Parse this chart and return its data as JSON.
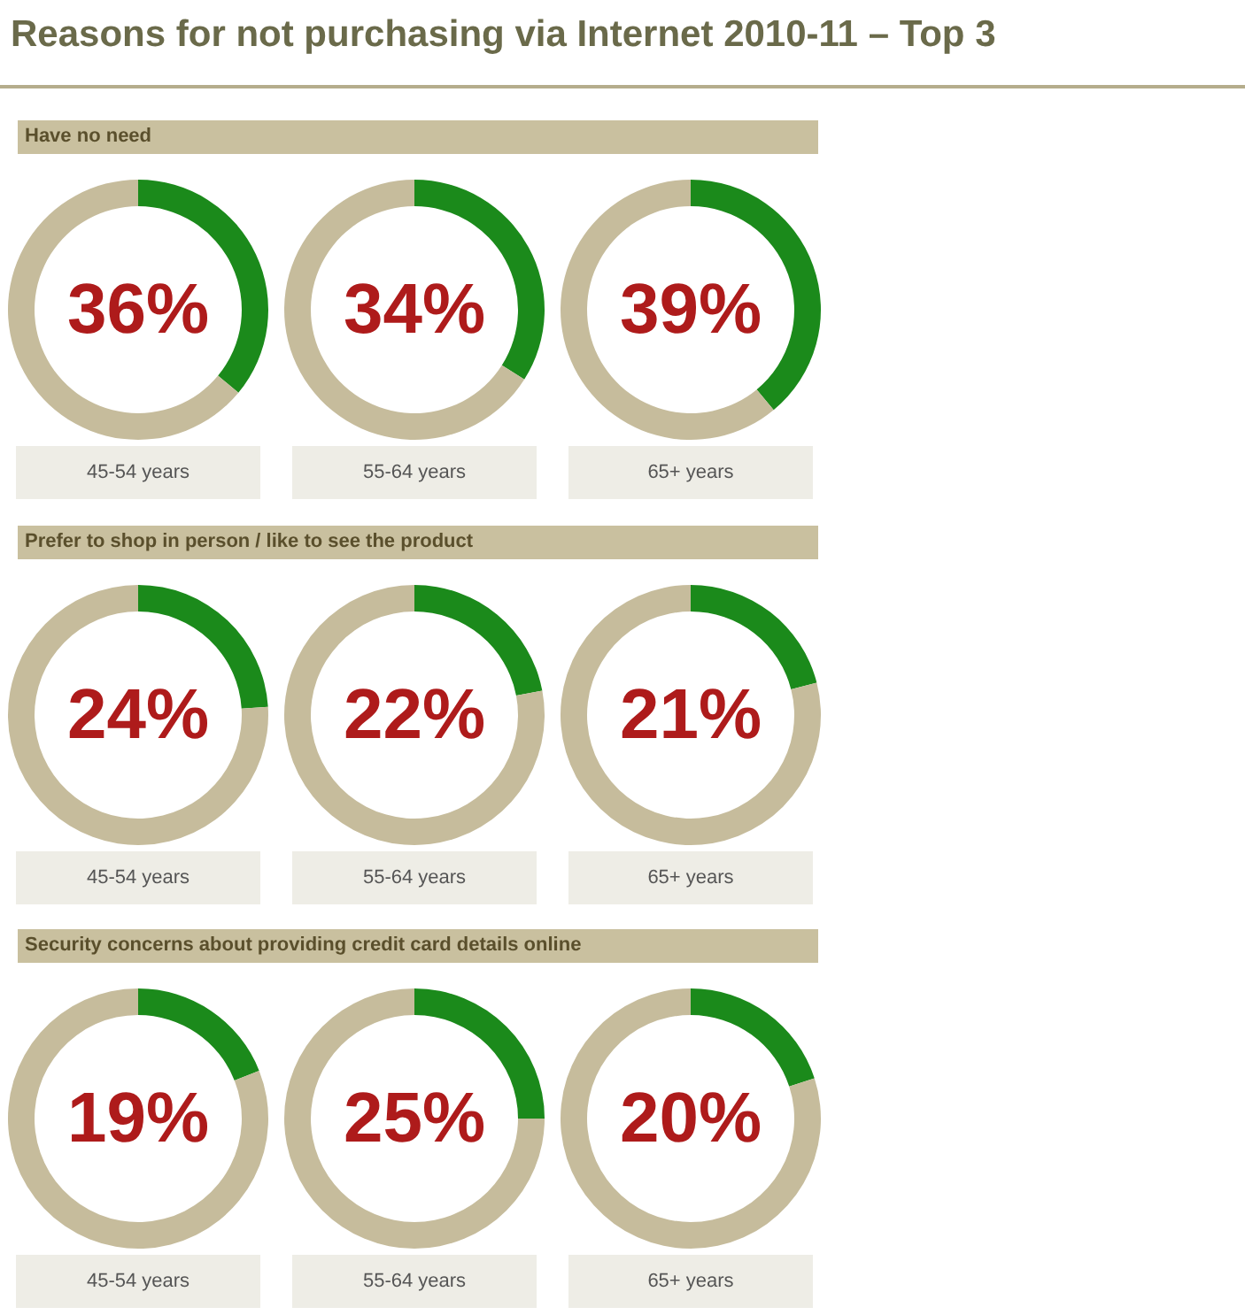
{
  "chart_data": [
    {
      "type": "donut",
      "title": "Reasons for not purchasing via Internet 2010-11 – Top 3",
      "subtitle": "Have no need",
      "categories": [
        null,
        null
      ],
      "values": [
        36,
        64
      ],
      "colors": [
        "#1b8a1b",
        "#c6bc9c"
      ],
      "annotations": [
        "36%",
        "45-54 years"
      ]
    },
    {
      "type": "donut",
      "categories": [
        null,
        null
      ],
      "values": [
        34,
        66
      ],
      "colors": [
        "#1b8a1b",
        "#c6bc9c"
      ],
      "annotations": [
        "34%",
        "55-64 years"
      ]
    },
    {
      "type": "donut",
      "categories": [
        null,
        null
      ],
      "values": [
        39,
        61
      ],
      "colors": [
        "#1b8a1b",
        "#c6bc9c"
      ],
      "annotations": [
        "39%",
        "65+ years"
      ]
    },
    {
      "type": "donut",
      "subtitle": "Prefer to shop in person / like to see the product",
      "categories": [
        null,
        null
      ],
      "values": [
        24,
        76
      ],
      "colors": [
        "#1b8a1b",
        "#c6bc9c"
      ],
      "annotations": [
        "24%",
        "45-54 years"
      ]
    },
    {
      "type": "donut",
      "categories": [
        null,
        null
      ],
      "values": [
        22,
        78
      ],
      "colors": [
        "#1b8a1b",
        "#c6bc9c"
      ],
      "annotations": [
        "22%",
        "55-64 years"
      ]
    },
    {
      "type": "donut",
      "categories": [
        null,
        null
      ],
      "values": [
        21,
        79
      ],
      "colors": [
        "#1b8a1b",
        "#c6bc9c"
      ],
      "annotations": [
        "21%",
        "65+ years"
      ]
    },
    {
      "type": "donut",
      "subtitle": "Security concerns about providing credit card details online",
      "categories": [
        null,
        null
      ],
      "values": [
        19,
        81
      ],
      "colors": [
        "#1b8a1b",
        "#c6bc9c"
      ],
      "annotations": [
        "19%",
        "45-54 years"
      ]
    },
    {
      "type": "donut",
      "categories": [
        null,
        null
      ],
      "values": [
        25,
        75
      ],
      "colors": [
        "#1b8a1b",
        "#c6bc9c"
      ],
      "annotations": [
        "25%",
        "55-64 years"
      ]
    },
    {
      "type": "donut",
      "categories": [
        null,
        null
      ],
      "values": [
        20,
        80
      ],
      "colors": [
        "#1b8a1b",
        "#c6bc9c"
      ],
      "annotations": [
        "20%",
        "65+ years"
      ]
    }
  ]
}
